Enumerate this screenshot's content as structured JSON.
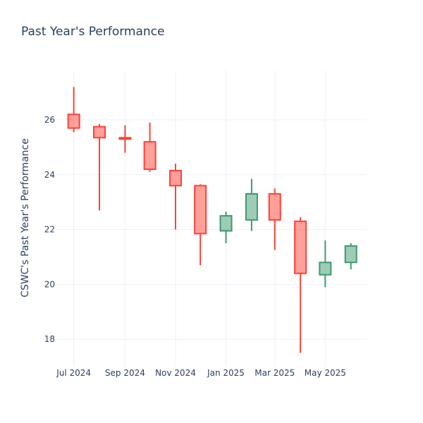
{
  "chart_data": {
    "type": "candlestick",
    "title": "Past Year's Performance",
    "xlabel": "",
    "ylabel": "CSWC's Past Year's Performance",
    "ylim": [
      17,
      27.8
    ],
    "y_ticks": [
      18,
      20,
      22,
      24,
      26
    ],
    "x_ticks": [
      {
        "label": "Jul 2024",
        "date": "2024-07-01"
      },
      {
        "label": "Sep 2024",
        "date": "2024-09-01"
      },
      {
        "label": "Nov 2024",
        "date": "2024-11-01"
      },
      {
        "label": "Jan 2025",
        "date": "2025-01-01"
      },
      {
        "label": "Mar 2025",
        "date": "2025-03-01"
      },
      {
        "label": "May 2025",
        "date": "2025-05-01"
      }
    ],
    "x_range": [
      "2024-06-10",
      "2025-06-20"
    ],
    "grid": true,
    "increasing_color": "#3d9970",
    "decreasing_color": "#ff4136",
    "candles": [
      {
        "date": "2024-07-01",
        "open": 26.2,
        "high": 27.2,
        "low": 25.55,
        "close": 25.7
      },
      {
        "date": "2024-08-01",
        "open": 25.75,
        "high": 25.85,
        "low": 22.7,
        "close": 25.35
      },
      {
        "date": "2024-09-01",
        "open": 25.35,
        "high": 25.8,
        "low": 24.8,
        "close": 25.3
      },
      {
        "date": "2024-10-01",
        "open": 25.2,
        "high": 25.9,
        "low": 24.1,
        "close": 24.2
      },
      {
        "date": "2024-11-01",
        "open": 24.15,
        "high": 24.4,
        "low": 22.0,
        "close": 23.6
      },
      {
        "date": "2024-12-01",
        "open": 23.6,
        "high": 23.65,
        "low": 20.7,
        "close": 21.85
      },
      {
        "date": "2025-01-01",
        "open": 21.95,
        "high": 22.65,
        "low": 21.5,
        "close": 22.5
      },
      {
        "date": "2025-02-01",
        "open": 22.35,
        "high": 23.85,
        "low": 21.95,
        "close": 23.3
      },
      {
        "date": "2025-03-01",
        "open": 23.3,
        "high": 23.5,
        "low": 21.25,
        "close": 22.35
      },
      {
        "date": "2025-04-01",
        "open": 22.3,
        "high": 22.45,
        "low": 17.5,
        "close": 20.4
      },
      {
        "date": "2025-05-01",
        "open": 20.35,
        "high": 21.6,
        "low": 19.9,
        "close": 20.8
      },
      {
        "date": "2025-06-01",
        "open": 20.8,
        "high": 21.5,
        "low": 20.55,
        "close": 21.4
      }
    ]
  }
}
